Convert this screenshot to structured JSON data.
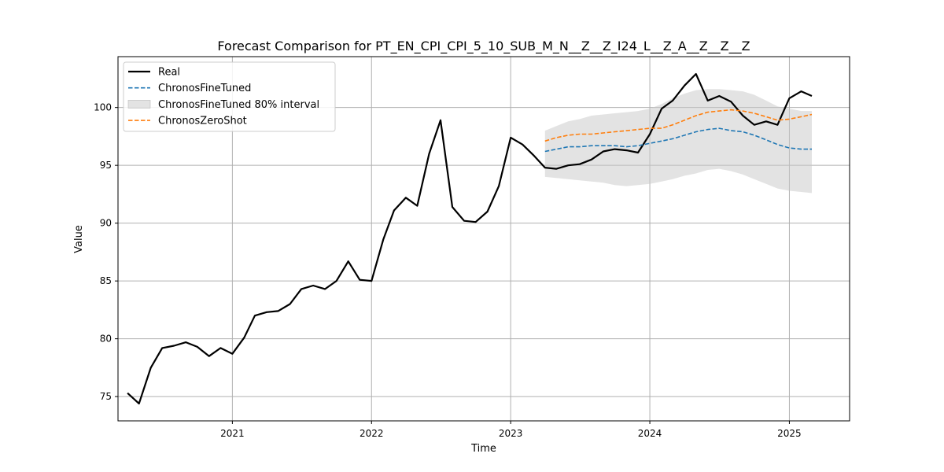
{
  "chart_data": {
    "type": "line",
    "title": "Forecast Comparison for PT_EN_CPI_CPI_5_10_SUB_M_N__Z__Z_I24_L__Z_A__Z__Z__Z",
    "xlabel": "Time",
    "ylabel": "Value",
    "xlim": [
      "2020-03-07",
      "2025-06-08"
    ],
    "ylim": [
      72.9,
      104.4
    ],
    "x_ticks": [
      {
        "value": "2021-01-01",
        "label": "2021"
      },
      {
        "value": "2022-01-01",
        "label": "2022"
      },
      {
        "value": "2023-01-01",
        "label": "2023"
      },
      {
        "value": "2024-01-01",
        "label": "2024"
      },
      {
        "value": "2025-01-01",
        "label": "2025"
      }
    ],
    "y_ticks": [
      75,
      80,
      85,
      90,
      95,
      100
    ],
    "grid": true,
    "legend_position": "top-left",
    "series": [
      {
        "name": "Real",
        "kind": "line",
        "color": "#000000",
        "dash": "solid",
        "x": [
          "2020-04",
          "2020-05",
          "2020-06",
          "2020-07",
          "2020-08",
          "2020-09",
          "2020-10",
          "2020-11",
          "2020-12",
          "2021-01",
          "2021-02",
          "2021-03",
          "2021-04",
          "2021-05",
          "2021-06",
          "2021-07",
          "2021-08",
          "2021-09",
          "2021-10",
          "2021-11",
          "2021-12",
          "2022-01",
          "2022-02",
          "2022-03",
          "2022-04",
          "2022-05",
          "2022-06",
          "2022-07",
          "2022-08",
          "2022-09",
          "2022-10",
          "2022-11",
          "2022-12",
          "2023-01",
          "2023-02",
          "2023-03",
          "2023-04",
          "2023-05",
          "2023-06",
          "2023-07",
          "2023-08",
          "2023-09",
          "2023-10",
          "2023-11",
          "2023-12",
          "2024-01",
          "2024-02",
          "2024-03",
          "2024-04",
          "2024-05",
          "2024-06",
          "2024-07",
          "2024-08",
          "2024-09",
          "2024-10",
          "2024-11",
          "2024-12",
          "2025-01",
          "2025-02",
          "2025-03"
        ],
        "values": [
          75.3,
          74.4,
          77.5,
          79.2,
          79.4,
          79.7,
          79.3,
          78.5,
          79.2,
          78.7,
          80.1,
          82.0,
          82.3,
          82.4,
          83.0,
          84.3,
          84.6,
          84.3,
          85.0,
          86.7,
          85.1,
          85.0,
          88.6,
          91.1,
          92.2,
          91.5,
          96.0,
          98.9,
          91.4,
          90.2,
          90.1,
          91.0,
          93.2,
          97.4,
          96.8,
          95.9,
          94.8,
          94.7,
          95.0,
          95.1,
          95.5,
          96.2,
          96.4,
          96.3,
          96.1,
          97.7,
          99.9,
          100.6,
          101.9,
          102.9,
          100.6,
          101.0,
          100.5,
          99.3,
          98.5,
          98.8,
          98.5,
          100.8,
          101.4,
          101.0
        ]
      },
      {
        "name": "ChronosFineTuned",
        "kind": "line",
        "color": "#1f77b4",
        "dash": "dashed",
        "x": [
          "2023-04",
          "2023-05",
          "2023-06",
          "2023-07",
          "2023-08",
          "2023-09",
          "2023-10",
          "2023-11",
          "2023-12",
          "2024-01",
          "2024-02",
          "2024-03",
          "2024-04",
          "2024-05",
          "2024-06",
          "2024-07",
          "2024-08",
          "2024-09",
          "2024-10",
          "2024-11",
          "2024-12",
          "2025-01",
          "2025-02",
          "2025-03"
        ],
        "values": [
          96.2,
          96.4,
          96.6,
          96.6,
          96.7,
          96.7,
          96.7,
          96.6,
          96.7,
          96.9,
          97.1,
          97.3,
          97.6,
          97.9,
          98.1,
          98.2,
          98.0,
          97.9,
          97.6,
          97.2,
          96.8,
          96.5,
          96.4,
          96.4
        ]
      },
      {
        "name": "ChronosFineTuned 80% interval",
        "kind": "band",
        "color": "#c8c8c8",
        "x": [
          "2023-04",
          "2023-05",
          "2023-06",
          "2023-07",
          "2023-08",
          "2023-09",
          "2023-10",
          "2023-11",
          "2023-12",
          "2024-01",
          "2024-02",
          "2024-03",
          "2024-04",
          "2024-05",
          "2024-06",
          "2024-07",
          "2024-08",
          "2024-09",
          "2024-10",
          "2024-11",
          "2024-12",
          "2025-01",
          "2025-02",
          "2025-03"
        ],
        "lower": [
          94.0,
          93.9,
          93.8,
          93.7,
          93.6,
          93.5,
          93.3,
          93.2,
          93.3,
          93.4,
          93.6,
          93.8,
          94.1,
          94.3,
          94.6,
          94.7,
          94.5,
          94.2,
          93.8,
          93.4,
          93.0,
          92.8,
          92.7,
          92.6
        ],
        "upper": [
          98.0,
          98.4,
          98.8,
          99.0,
          99.3,
          99.4,
          99.5,
          99.6,
          99.7,
          99.9,
          100.3,
          100.8,
          101.2,
          101.5,
          101.6,
          101.6,
          101.5,
          101.4,
          101.1,
          100.6,
          100.1,
          99.9,
          99.7,
          99.7
        ]
      },
      {
        "name": "ChronosZeroShot",
        "kind": "line",
        "color": "#ff7f0e",
        "dash": "dashed",
        "x": [
          "2023-04",
          "2023-05",
          "2023-06",
          "2023-07",
          "2023-08",
          "2023-09",
          "2023-10",
          "2023-11",
          "2023-12",
          "2024-01",
          "2024-02",
          "2024-03",
          "2024-04",
          "2024-05",
          "2024-06",
          "2024-07",
          "2024-08",
          "2024-09",
          "2024-10",
          "2024-11",
          "2024-12",
          "2025-01",
          "2025-02",
          "2025-03"
        ],
        "values": [
          97.1,
          97.4,
          97.6,
          97.7,
          97.7,
          97.8,
          97.9,
          98.0,
          98.1,
          98.2,
          98.2,
          98.5,
          98.9,
          99.3,
          99.6,
          99.7,
          99.8,
          99.7,
          99.5,
          99.2,
          98.9,
          99.0,
          99.2,
          99.4
        ]
      }
    ]
  }
}
